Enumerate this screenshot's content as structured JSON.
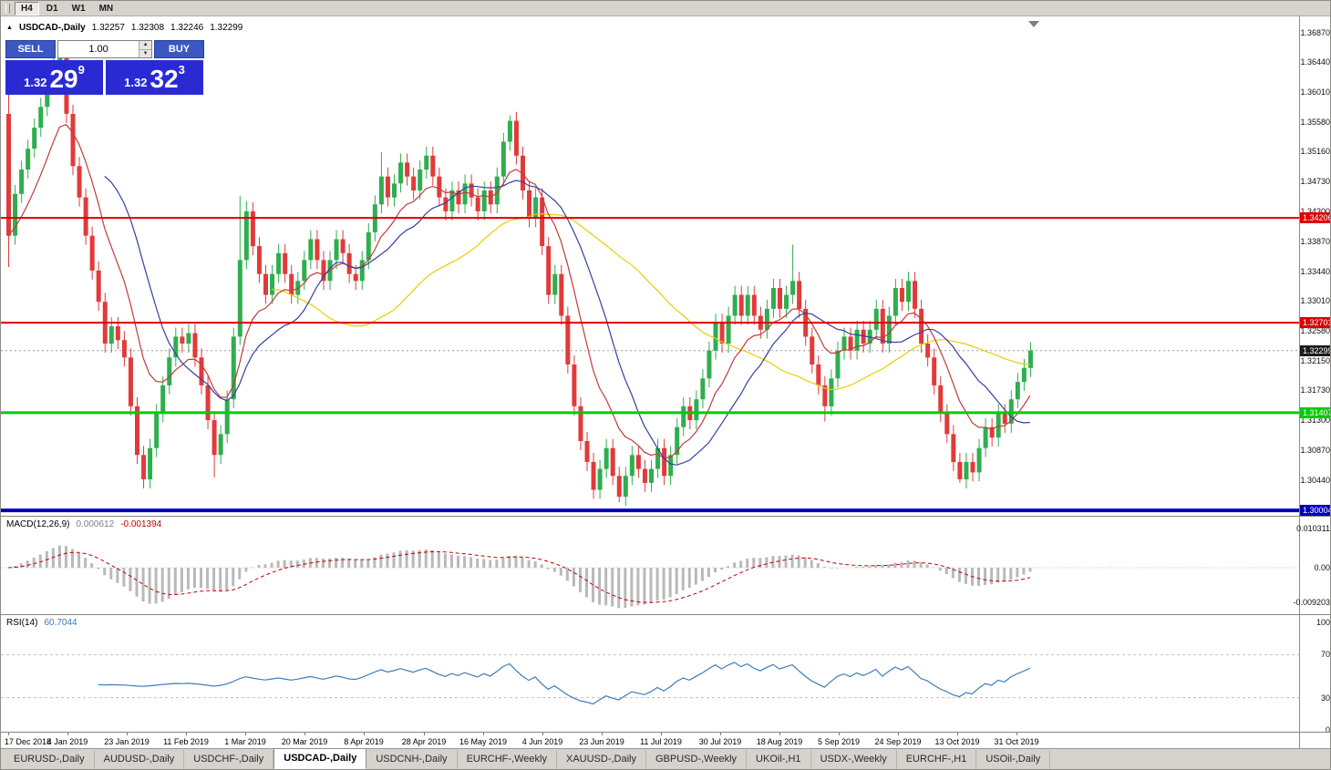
{
  "toolbar": {
    "timeframes": [
      {
        "label": "H4",
        "active": true
      },
      {
        "label": "D1",
        "active": false
      },
      {
        "label": "W1",
        "active": false
      },
      {
        "label": "MN",
        "active": false
      }
    ]
  },
  "header": {
    "symbol": "USDCAD-,Daily",
    "open": "1.32257",
    "high": "1.32308",
    "low": "1.32246",
    "close": "1.32299"
  },
  "icons": {
    "spinner_up": "▲",
    "spinner_down": "▼",
    "symbol_marker": "▲"
  },
  "trade_panel": {
    "sell_label": "SELL",
    "buy_label": "BUY",
    "volume": "1.00",
    "sell_price": {
      "prefix": "1.32",
      "big": "29",
      "sup": "9"
    },
    "buy_price": {
      "prefix": "1.32",
      "big": "32",
      "sup": "3"
    }
  },
  "tabs": [
    {
      "label": "EURUSD-,Daily",
      "active": false
    },
    {
      "label": "AUDUSD-,Daily",
      "active": false
    },
    {
      "label": "USDCHF-,Daily",
      "active": false
    },
    {
      "label": "USDCAD-,Daily",
      "active": true
    },
    {
      "label": "USDCNH-,Daily",
      "active": false
    },
    {
      "label": "EURCHF-,Weekly",
      "active": false
    },
    {
      "label": "XAUUSD-,Daily",
      "active": false
    },
    {
      "label": "GBPUSD-,Weekly",
      "active": false
    },
    {
      "label": "UKOil-,H1",
      "active": false
    },
    {
      "label": "USDX-,Weekly",
      "active": false
    },
    {
      "label": "EURCHF-,H1",
      "active": false
    },
    {
      "label": "USOil-,Daily",
      "active": false
    }
  ],
  "chart_data": {
    "type": "candlestick",
    "title": "USDCAD-,Daily",
    "ylim": [
      1.29927,
      1.371
    ],
    "colors": {
      "up": "#2fae4e",
      "down": "#e23a3a"
    },
    "price_scale": [
      "1.36870",
      "1.36440",
      "1.36010",
      "1.35580",
      "1.35160",
      "1.34730",
      "1.34300",
      "1.33870",
      "1.33440",
      "1.33010",
      "1.32580",
      "1.32150",
      "1.31730",
      "1.31300",
      "1.30870",
      "1.30440"
    ],
    "dates": [
      "17 Dec 2018",
      "4 Jan 2019",
      "23 Jan 2019",
      "11 Feb 2019",
      "1 Mar 2019",
      "20 Mar 2019",
      "8 Apr 2019",
      "28 Apr 2019",
      "16 May 2019",
      "4 Jun 2019",
      "23 Jun 2019",
      "11 Jul 2019",
      "30 Jul 2019",
      "18 Aug 2019",
      "5 Sep 2019",
      "24 Sep 2019",
      "13 Oct 2019",
      "31 Oct 2019"
    ],
    "hlines": [
      {
        "price": 1.34206,
        "label": "1.34206",
        "color": "#dd0000",
        "width": 2
      },
      {
        "price": 1.32701,
        "label": "1.32701",
        "color": "#dd0000",
        "width": 2
      },
      {
        "price": 1.31407,
        "label": "1.31407",
        "color": "#00cc00",
        "width": 3
      },
      {
        "price": 1.30004,
        "label": "1.30004",
        "color": "#0000bb",
        "width": 4
      }
    ],
    "current_price": {
      "value": 1.32299,
      "label": "1.32299"
    },
    "moving_averages": [
      {
        "period": 42,
        "type": "sma",
        "color": "#e8cf00"
      },
      {
        "period": 10,
        "type": "ema",
        "color": "#c23b3b"
      },
      {
        "period": 16,
        "type": "sma",
        "color": "#34409e"
      }
    ],
    "indicators": {
      "macd": {
        "label": "MACD(12,26,9)",
        "value_main": "0.000612",
        "value_signal": "-0.001394",
        "fast": 12,
        "slow": 26,
        "signal": 9,
        "scale": [
          "0.010311",
          "0.00",
          "-0.009203"
        ],
        "histogram_color": "#b9b9b9",
        "signal_color": "#c00000"
      },
      "rsi": {
        "label": "RSI(14)",
        "value": "60.7044",
        "period": 14,
        "scale": [
          "100",
          "70",
          "30",
          "0"
        ],
        "levels": [
          70,
          30
        ],
        "color": "#3f7cba"
      }
    },
    "candles": [
      [
        1.357,
        1.3615,
        1.335,
        1.3395
      ],
      [
        1.3395,
        1.3468,
        1.3382,
        1.3455
      ],
      [
        1.3455,
        1.3503,
        1.3442,
        1.349
      ],
      [
        1.349,
        1.3533,
        1.3477,
        1.352
      ],
      [
        1.352,
        1.3563,
        1.3507,
        1.355
      ],
      [
        1.355,
        1.3593,
        1.3537,
        1.358
      ],
      [
        1.358,
        1.3623,
        1.3567,
        1.361
      ],
      [
        1.361,
        1.3653,
        1.3597,
        1.364
      ],
      [
        1.364,
        1.3662,
        1.3627,
        1.365
      ],
      [
        1.365,
        1.3663,
        1.3557,
        1.357
      ],
      [
        1.357,
        1.3583,
        1.3482,
        1.3495
      ],
      [
        1.3495,
        1.3508,
        1.3437,
        1.345
      ],
      [
        1.345,
        1.3463,
        1.3382,
        1.3395
      ],
      [
        1.3395,
        1.3408,
        1.3332,
        1.3345
      ],
      [
        1.3345,
        1.3358,
        1.3287,
        1.33
      ],
      [
        1.33,
        1.3313,
        1.3227,
        1.324
      ],
      [
        1.324,
        1.3278,
        1.3227,
        1.3265
      ],
      [
        1.3265,
        1.3278,
        1.3232,
        1.3245
      ],
      [
        1.3245,
        1.3258,
        1.3207,
        1.322
      ],
      [
        1.322,
        1.3233,
        1.3137,
        1.315
      ],
      [
        1.315,
        1.3163,
        1.3067,
        1.308
      ],
      [
        1.308,
        1.3093,
        1.3032,
        1.3045
      ],
      [
        1.3045,
        1.3103,
        1.3032,
        1.309
      ],
      [
        1.309,
        1.3153,
        1.3077,
        1.314
      ],
      [
        1.314,
        1.3193,
        1.3127,
        1.318
      ],
      [
        1.318,
        1.3233,
        1.3167,
        1.322
      ],
      [
        1.322,
        1.3263,
        1.3207,
        1.325
      ],
      [
        1.325,
        1.3263,
        1.3227,
        1.324
      ],
      [
        1.324,
        1.3268,
        1.3227,
        1.3255
      ],
      [
        1.3255,
        1.3268,
        1.3207,
        1.322
      ],
      [
        1.322,
        1.3233,
        1.3167,
        1.318
      ],
      [
        1.318,
        1.3193,
        1.3117,
        1.313
      ],
      [
        1.313,
        1.3143,
        1.3048,
        1.308
      ],
      [
        1.308,
        1.3123,
        1.3067,
        1.311
      ],
      [
        1.311,
        1.3173,
        1.3097,
        1.316
      ],
      [
        1.316,
        1.3263,
        1.3147,
        1.325
      ],
      [
        1.325,
        1.3452,
        1.3238,
        1.336
      ],
      [
        1.336,
        1.3445,
        1.3347,
        1.343
      ],
      [
        1.343,
        1.3443,
        1.3367,
        1.338
      ],
      [
        1.338,
        1.3393,
        1.3327,
        1.334
      ],
      [
        1.334,
        1.3353,
        1.3297,
        1.331
      ],
      [
        1.331,
        1.3353,
        1.3297,
        1.334
      ],
      [
        1.334,
        1.3383,
        1.3327,
        1.337
      ],
      [
        1.337,
        1.3383,
        1.3327,
        1.334
      ],
      [
        1.334,
        1.3353,
        1.3297,
        1.331
      ],
      [
        1.331,
        1.3343,
        1.3297,
        1.333
      ],
      [
        1.333,
        1.3373,
        1.3317,
        1.336
      ],
      [
        1.336,
        1.3403,
        1.3347,
        1.339
      ],
      [
        1.339,
        1.3403,
        1.3347,
        1.336
      ],
      [
        1.336,
        1.3373,
        1.3317,
        1.333
      ],
      [
        1.333,
        1.3373,
        1.3317,
        1.336
      ],
      [
        1.336,
        1.3403,
        1.3347,
        1.339
      ],
      [
        1.339,
        1.3403,
        1.3357,
        1.337
      ],
      [
        1.337,
        1.3383,
        1.3327,
        1.334
      ],
      [
        1.334,
        1.3353,
        1.3317,
        1.333
      ],
      [
        1.333,
        1.3373,
        1.3317,
        1.336
      ],
      [
        1.336,
        1.3413,
        1.3347,
        1.34
      ],
      [
        1.34,
        1.3453,
        1.3387,
        1.344
      ],
      [
        1.344,
        1.3515,
        1.3427,
        1.348
      ],
      [
        1.348,
        1.3493,
        1.3437,
        1.345
      ],
      [
        1.345,
        1.3483,
        1.3437,
        1.347
      ],
      [
        1.347,
        1.3513,
        1.3457,
        1.35
      ],
      [
        1.35,
        1.3513,
        1.3467,
        1.348
      ],
      [
        1.348,
        1.3493,
        1.3447,
        1.346
      ],
      [
        1.346,
        1.3503,
        1.3447,
        1.349
      ],
      [
        1.349,
        1.3523,
        1.3477,
        1.351
      ],
      [
        1.351,
        1.3523,
        1.3467,
        1.348
      ],
      [
        1.348,
        1.3493,
        1.3437,
        1.345
      ],
      [
        1.345,
        1.3463,
        1.3417,
        1.343
      ],
      [
        1.343,
        1.3473,
        1.3417,
        1.346
      ],
      [
        1.346,
        1.3473,
        1.3427,
        1.344
      ],
      [
        1.344,
        1.3483,
        1.3427,
        1.347
      ],
      [
        1.347,
        1.3483,
        1.3437,
        1.345
      ],
      [
        1.345,
        1.3463,
        1.3417,
        1.343
      ],
      [
        1.343,
        1.3473,
        1.3417,
        1.346
      ],
      [
        1.346,
        1.3473,
        1.3427,
        1.344
      ],
      [
        1.344,
        1.3493,
        1.3427,
        1.348
      ],
      [
        1.348,
        1.3543,
        1.3467,
        1.353
      ],
      [
        1.353,
        1.3568,
        1.3517,
        1.356
      ],
      [
        1.356,
        1.3573,
        1.3497,
        1.351
      ],
      [
        1.351,
        1.3523,
        1.3447,
        1.346
      ],
      [
        1.346,
        1.3473,
        1.3407,
        1.342
      ],
      [
        1.342,
        1.3463,
        1.3407,
        1.345
      ],
      [
        1.345,
        1.3463,
        1.3367,
        1.338
      ],
      [
        1.338,
        1.3393,
        1.3297,
        1.331
      ],
      [
        1.331,
        1.3353,
        1.3297,
        1.334
      ],
      [
        1.334,
        1.3353,
        1.3267,
        1.328
      ],
      [
        1.328,
        1.3293,
        1.3197,
        1.321
      ],
      [
        1.321,
        1.3223,
        1.3137,
        1.315
      ],
      [
        1.315,
        1.3163,
        1.3087,
        1.31
      ],
      [
        1.31,
        1.3113,
        1.3057,
        1.307
      ],
      [
        1.307,
        1.3083,
        1.3017,
        1.303
      ],
      [
        1.303,
        1.3073,
        1.3017,
        1.306
      ],
      [
        1.306,
        1.3103,
        1.3047,
        1.309
      ],
      [
        1.309,
        1.3103,
        1.3037,
        1.305
      ],
      [
        1.305,
        1.3063,
        1.3012,
        1.302
      ],
      [
        1.302,
        1.3063,
        1.3007,
        1.305
      ],
      [
        1.305,
        1.3093,
        1.3037,
        1.308
      ],
      [
        1.308,
        1.3093,
        1.3047,
        1.306
      ],
      [
        1.306,
        1.3073,
        1.3027,
        1.304
      ],
      [
        1.304,
        1.3073,
        1.3027,
        1.306
      ],
      [
        1.306,
        1.3103,
        1.3047,
        1.309
      ],
      [
        1.309,
        1.3103,
        1.3037,
        1.305
      ],
      [
        1.305,
        1.3093,
        1.3037,
        1.308
      ],
      [
        1.308,
        1.3133,
        1.3067,
        1.312
      ],
      [
        1.312,
        1.3163,
        1.3107,
        1.315
      ],
      [
        1.315,
        1.3163,
        1.3117,
        1.313
      ],
      [
        1.313,
        1.3173,
        1.3117,
        1.316
      ],
      [
        1.316,
        1.3203,
        1.3147,
        1.319
      ],
      [
        1.319,
        1.3243,
        1.3177,
        1.323
      ],
      [
        1.323,
        1.3283,
        1.3217,
        1.327
      ],
      [
        1.327,
        1.3283,
        1.3227,
        1.324
      ],
      [
        1.324,
        1.3293,
        1.3227,
        1.328
      ],
      [
        1.328,
        1.3323,
        1.3267,
        1.331
      ],
      [
        1.331,
        1.3323,
        1.3267,
        1.328
      ],
      [
        1.328,
        1.3323,
        1.3267,
        1.331
      ],
      [
        1.331,
        1.3323,
        1.3267,
        1.328
      ],
      [
        1.328,
        1.3293,
        1.3247,
        1.326
      ],
      [
        1.326,
        1.3303,
        1.3247,
        1.329
      ],
      [
        1.329,
        1.3333,
        1.3277,
        1.332
      ],
      [
        1.332,
        1.3333,
        1.3277,
        1.329
      ],
      [
        1.329,
        1.3323,
        1.3277,
        1.331
      ],
      [
        1.331,
        1.3382,
        1.3297,
        1.333
      ],
      [
        1.333,
        1.3343,
        1.3277,
        1.329
      ],
      [
        1.329,
        1.3303,
        1.3237,
        1.325
      ],
      [
        1.325,
        1.3263,
        1.3197,
        1.321
      ],
      [
        1.321,
        1.3223,
        1.3167,
        1.318
      ],
      [
        1.318,
        1.3193,
        1.3128,
        1.315
      ],
      [
        1.315,
        1.3203,
        1.3137,
        1.319
      ],
      [
        1.319,
        1.3243,
        1.3177,
        1.323
      ],
      [
        1.323,
        1.3263,
        1.3217,
        1.325
      ],
      [
        1.325,
        1.3263,
        1.3217,
        1.323
      ],
      [
        1.323,
        1.3273,
        1.3217,
        1.326
      ],
      [
        1.326,
        1.3273,
        1.3227,
        1.324
      ],
      [
        1.324,
        1.3273,
        1.3227,
        1.326
      ],
      [
        1.326,
        1.3303,
        1.3247,
        1.329
      ],
      [
        1.329,
        1.3303,
        1.3227,
        1.324
      ],
      [
        1.324,
        1.3293,
        1.3227,
        1.328
      ],
      [
        1.328,
        1.3333,
        1.3267,
        1.332
      ],
      [
        1.332,
        1.3333,
        1.3287,
        1.33
      ],
      [
        1.33,
        1.3343,
        1.3287,
        1.333
      ],
      [
        1.333,
        1.3343,
        1.3277,
        1.329
      ],
      [
        1.329,
        1.3303,
        1.3227,
        1.324
      ],
      [
        1.324,
        1.3253,
        1.3207,
        1.322
      ],
      [
        1.322,
        1.3233,
        1.3167,
        1.318
      ],
      [
        1.318,
        1.3193,
        1.3127,
        1.314
      ],
      [
        1.314,
        1.3153,
        1.3097,
        1.311
      ],
      [
        1.311,
        1.3123,
        1.3057,
        1.307
      ],
      [
        1.307,
        1.3083,
        1.304,
        1.3045
      ],
      [
        1.3045,
        1.3083,
        1.3032,
        1.307
      ],
      [
        1.307,
        1.3083,
        1.3042,
        1.3055
      ],
      [
        1.3055,
        1.3103,
        1.3042,
        1.309
      ],
      [
        1.309,
        1.3133,
        1.3077,
        1.312
      ],
      [
        1.312,
        1.3133,
        1.3092,
        1.3105
      ],
      [
        1.3105,
        1.3153,
        1.3092,
        1.314
      ],
      [
        1.314,
        1.3153,
        1.3112,
        1.3125
      ],
      [
        1.3125,
        1.3173,
        1.3112,
        1.316
      ],
      [
        1.316,
        1.3198,
        1.3147,
        1.3185
      ],
      [
        1.3185,
        1.3218,
        1.3172,
        1.3205
      ],
      [
        1.3205,
        1.3242,
        1.3192,
        1.323
      ]
    ]
  }
}
